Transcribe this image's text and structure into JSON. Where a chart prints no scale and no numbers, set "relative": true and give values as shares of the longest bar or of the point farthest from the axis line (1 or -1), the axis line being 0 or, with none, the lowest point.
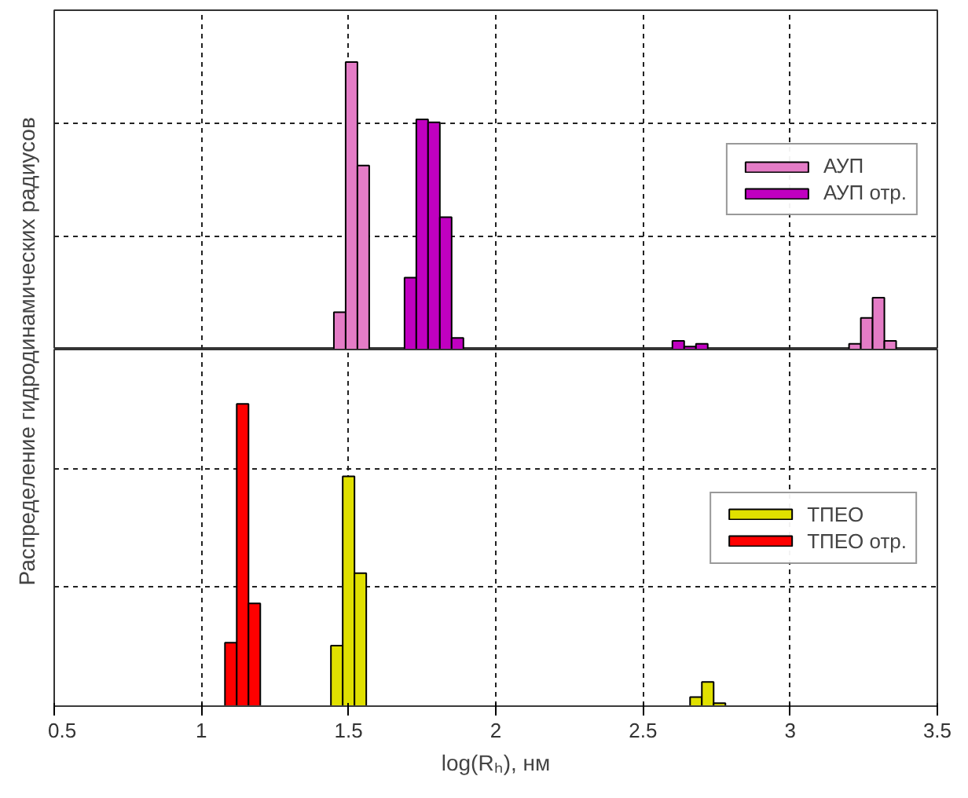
{
  "chart_data": [
    {
      "type": "bar",
      "relative": true,
      "ylabel": "Распределение гидродинамических радиусов",
      "xlim": [
        0.5,
        3.5
      ],
      "xticks": [
        0.5,
        1,
        1.5,
        2,
        2.5,
        3,
        3.5
      ],
      "tick_labels": false,
      "grid": true,
      "legend": "right",
      "series": [
        {
          "name": "АУП",
          "color": "#e47cc6",
          "x": [
            1.47,
            1.51,
            1.55,
            3.22,
            3.26,
            3.3,
            3.34
          ],
          "values": [
            0.13,
            1.0,
            0.64,
            0.02,
            0.11,
            0.18,
            0.03
          ]
        },
        {
          "name": "АУП отр.",
          "color": "#c000c0",
          "x": [
            1.71,
            1.75,
            1.79,
            1.83,
            1.87,
            2.62,
            2.66,
            2.7
          ],
          "values": [
            0.25,
            0.8,
            0.79,
            0.46,
            0.04,
            0.03,
            0.01,
            0.02
          ]
        }
      ]
    },
    {
      "type": "bar",
      "relative": true,
      "xlabel": "log(Rₕ), нм",
      "xlim": [
        0.5,
        3.5
      ],
      "xticks": [
        0.5,
        1,
        1.5,
        2,
        2.5,
        3,
        3.5
      ],
      "tick_labels": "x",
      "grid": true,
      "legend": "right",
      "series": [
        {
          "name": "ТПЕО",
          "color": "#e0e000",
          "x": [
            1.46,
            1.5,
            1.54,
            2.68,
            2.72,
            2.76
          ],
          "values": [
            0.2,
            0.76,
            0.44,
            0.03,
            0.08,
            0.01
          ]
        },
        {
          "name": "ТПЕО отр.",
          "color": "#ff0000",
          "x": [
            1.1,
            1.14,
            1.18
          ],
          "values": [
            0.21,
            1.0,
            0.34
          ]
        }
      ]
    }
  ]
}
